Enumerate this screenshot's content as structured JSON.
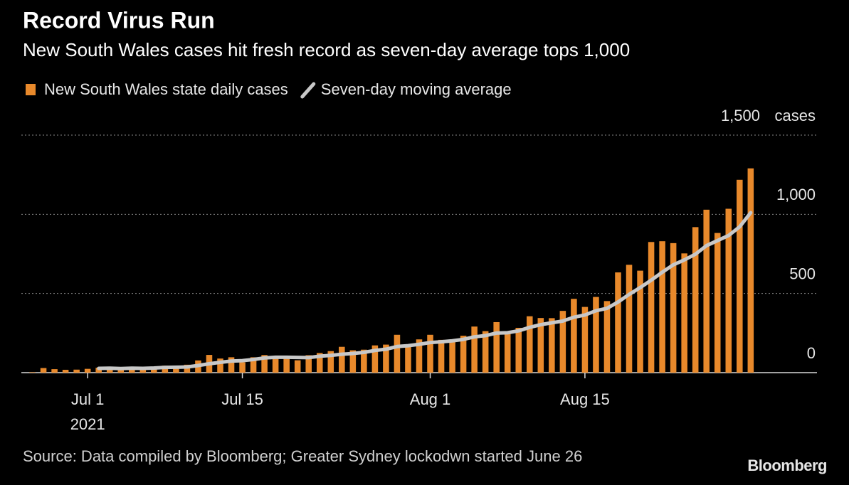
{
  "chart_data": {
    "type": "bar",
    "title": "Record Virus Run",
    "subtitle": "New South Wales cases hit fresh record as seven-day average tops 1,000",
    "source": "Source: Data compiled by Bloomberg; Greater Sydney lockodwn started June 26",
    "brand": "Bloomberg",
    "y_unit": "cases",
    "x": [
      "2021-06-26",
      "2021-06-27",
      "2021-06-28",
      "2021-06-29",
      "2021-06-30",
      "2021-07-01",
      "2021-07-02",
      "2021-07-03",
      "2021-07-04",
      "2021-07-05",
      "2021-07-06",
      "2021-07-07",
      "2021-07-08",
      "2021-07-09",
      "2021-07-10",
      "2021-07-11",
      "2021-07-12",
      "2021-07-13",
      "2021-07-14",
      "2021-07-15",
      "2021-07-16",
      "2021-07-17",
      "2021-07-18",
      "2021-07-19",
      "2021-07-20",
      "2021-07-21",
      "2021-07-22",
      "2021-07-23",
      "2021-07-24",
      "2021-07-25",
      "2021-07-26",
      "2021-07-27",
      "2021-07-28",
      "2021-07-29",
      "2021-07-30",
      "2021-07-31",
      "2021-08-01",
      "2021-08-02",
      "2021-08-03",
      "2021-08-04",
      "2021-08-05",
      "2021-08-06",
      "2021-08-07",
      "2021-08-08",
      "2021-08-09",
      "2021-08-10",
      "2021-08-11",
      "2021-08-12",
      "2021-08-13",
      "2021-08-14",
      "2021-08-15",
      "2021-08-16",
      "2021-08-17",
      "2021-08-18",
      "2021-08-19",
      "2021-08-20",
      "2021-08-21",
      "2021-08-22",
      "2021-08-23",
      "2021-08-24",
      "2021-08-25",
      "2021-08-26",
      "2021-08-27",
      "2021-08-28",
      "2021-08-29",
      "2021-08-30"
    ],
    "series": [
      {
        "name": "New South Wales state daily cases",
        "type": "bar",
        "color": "#e8892b",
        "values": [
          3,
          29,
          22,
          18,
          19,
          24,
          31,
          35,
          16,
          35,
          27,
          38,
          44,
          44,
          50,
          77,
          112,
          89,
          97,
          65,
          97,
          111,
          105,
          98,
          78,
          110,
          124,
          136,
          163,
          141,
          145,
          172,
          177,
          239,
          170,
          210,
          239,
          207,
          199,
          233,
          291,
          262,
          319,
          262,
          283,
          356,
          345,
          344,
          390,
          466,
          415,
          478,
          452,
          633,
          681,
          644,
          825,
          830,
          818,
          753,
          919,
          1029,
          882,
          1035,
          1218,
          1290
        ]
      },
      {
        "name": "Seven-day moving average",
        "type": "line",
        "color": "#c8c8c8",
        "values": [
          null,
          null,
          null,
          null,
          null,
          null,
          27,
          28,
          26,
          28,
          27,
          29,
          33,
          34,
          36,
          45,
          56,
          65,
          73,
          76,
          83,
          93,
          97,
          97,
          96,
          95,
          104,
          109,
          116,
          121,
          128,
          140,
          148,
          165,
          170,
          179,
          190,
          195,
          201,
          210,
          226,
          234,
          250,
          252,
          264,
          286,
          303,
          315,
          326,
          350,
          364,
          391,
          406,
          446,
          494,
          537,
          584,
          634,
          681,
          712,
          748,
          802,
          834,
          866,
          921,
          1010
        ]
      }
    ],
    "xlim": [
      "2021-06-25",
      "2021-09-05"
    ],
    "xticks": [
      {
        "value": "2021-07-01",
        "label": "Jul 1"
      },
      {
        "value": "2021-07-15",
        "label": "Jul 15"
      },
      {
        "value": "2021-08-01",
        "label": "Aug 1"
      },
      {
        "value": "2021-08-15",
        "label": "Aug 15"
      }
    ],
    "x_year_label": "2021",
    "ylim": [
      0,
      1500
    ],
    "yticks": [
      0,
      500,
      {
        "value": 1000,
        "label": "1,000"
      },
      {
        "value": 1500,
        "label": "1,500"
      }
    ],
    "grid": true
  }
}
